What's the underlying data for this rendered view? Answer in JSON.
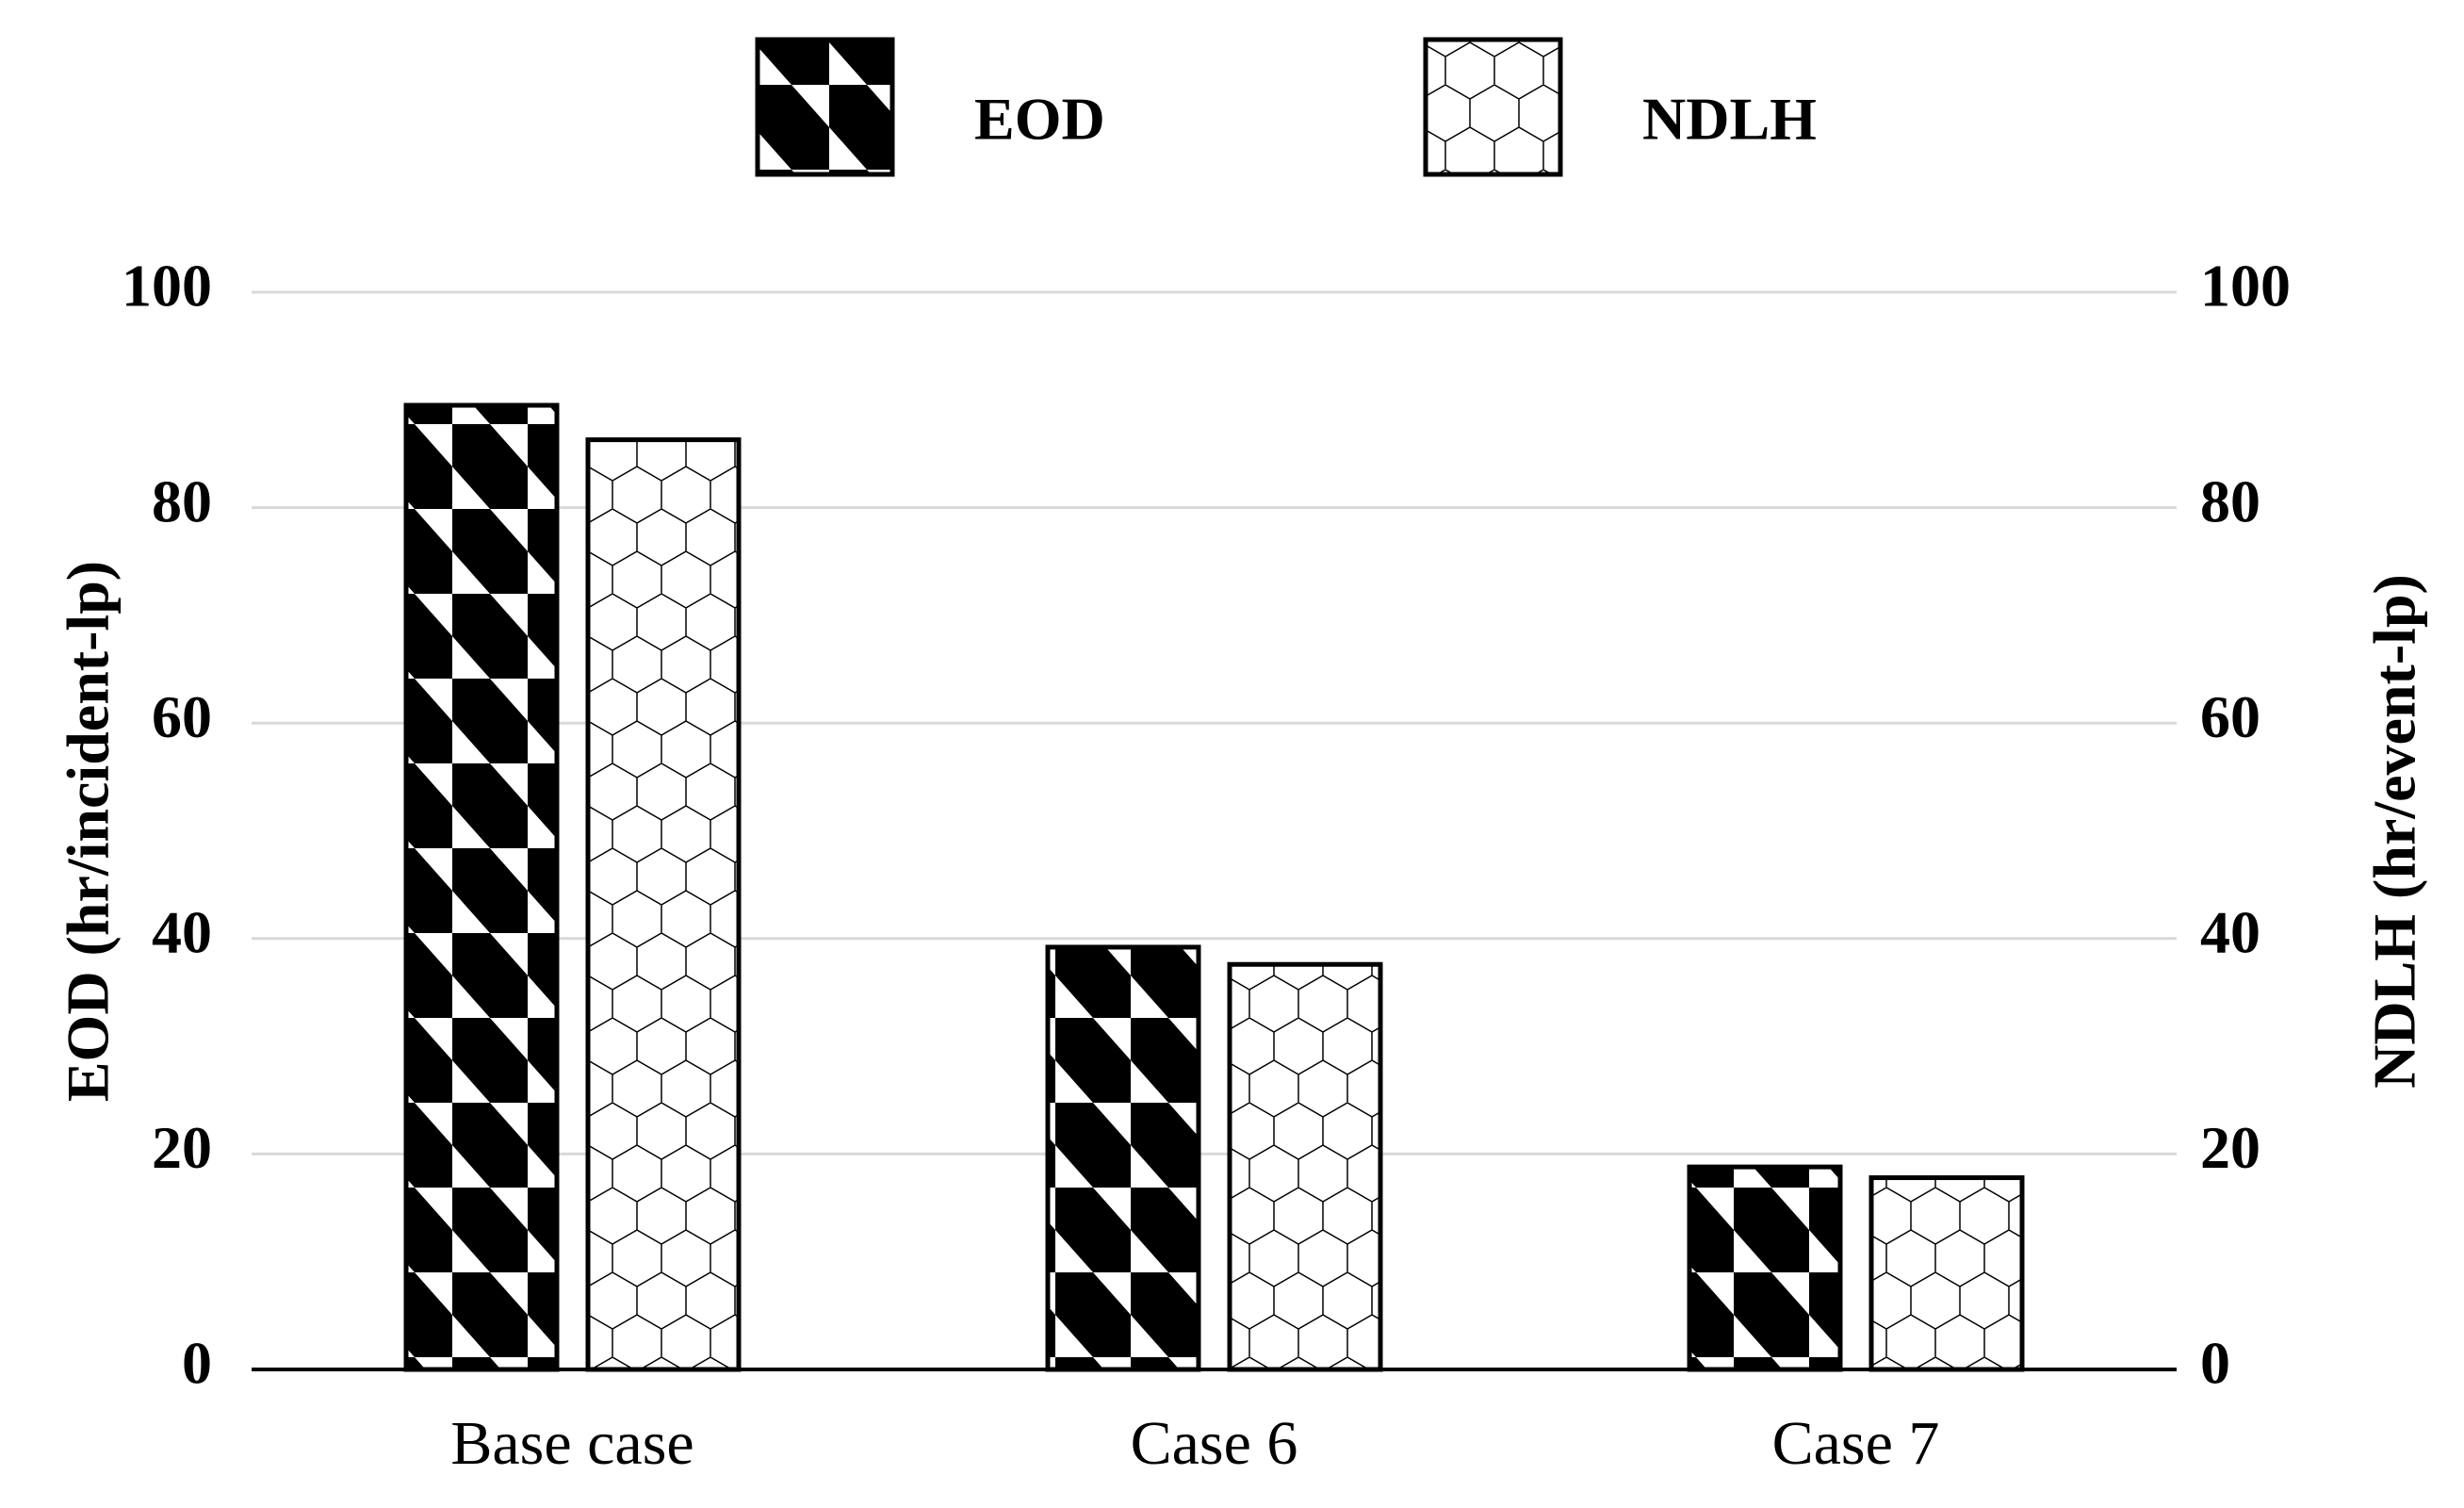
{
  "chart_data": {
    "type": "bar",
    "categories": [
      "Base case",
      "Case 6",
      "Case 7"
    ],
    "series": [
      {
        "name": "EOD",
        "color": "#000000",
        "pattern": "triangles",
        "values": [
          89.5,
          39.2,
          18.8
        ]
      },
      {
        "name": "NDLH",
        "color": "#000000",
        "pattern": "hexagons",
        "axis": "y2",
        "values": [
          86.3,
          37.6,
          17.8
        ]
      }
    ],
    "ylabel": "EOD (hr/incident-lp)",
    "y2label": "NDLH (hr/event-lp)",
    "ylim": [
      0,
      100
    ],
    "yticks": [
      0,
      20,
      40,
      60,
      80,
      100
    ],
    "y2lim": [
      0,
      100
    ],
    "y2ticks": [
      0,
      20,
      40,
      60,
      80,
      100
    ],
    "grid": true,
    "legend": "top"
  }
}
